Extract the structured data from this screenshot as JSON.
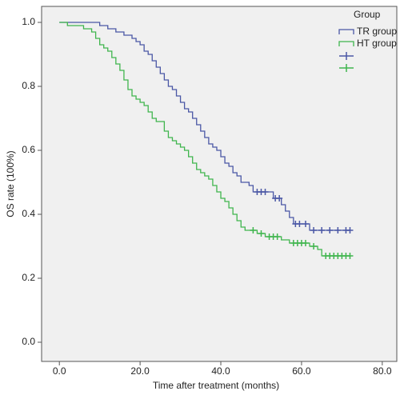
{
  "chart_data": {
    "type": "km",
    "x_label": "Time after treatment (months)",
    "y_label": "OS rate (100%)",
    "legend_title": "Group",
    "legend": "top-right",
    "xlim": [
      -4.4,
      83.6
    ],
    "ylim": [
      -0.06,
      1.05
    ],
    "xticks": [
      {
        "value": 0,
        "label": "0.0"
      },
      {
        "value": 20,
        "label": "20.0"
      },
      {
        "value": 40,
        "label": "40.0"
      },
      {
        "value": 60,
        "label": "60.0"
      },
      {
        "value": 80,
        "label": "80.0"
      }
    ],
    "yticks": [
      {
        "value": 0,
        "label": "0.0"
      },
      {
        "value": 0.2,
        "label": "0.2"
      },
      {
        "value": 0.4,
        "label": "0.4"
      },
      {
        "value": 0.6,
        "label": "0.6"
      },
      {
        "value": 0.8,
        "label": "0.8"
      },
      {
        "value": 1,
        "label": "1.0"
      }
    ],
    "series": [
      {
        "name": "TR group",
        "color": "#4a57a5",
        "x": [
          0,
          10,
          12,
          14,
          16,
          18,
          19,
          20,
          21,
          22,
          23,
          24,
          25,
          26,
          27,
          28,
          29,
          30,
          31,
          32,
          33,
          34,
          35,
          36,
          37,
          38,
          39,
          40,
          41,
          42,
          43,
          44,
          45,
          47,
          48,
          53,
          55,
          56,
          57,
          58,
          62,
          72
        ],
        "values": [
          1.0,
          0.99,
          0.98,
          0.97,
          0.96,
          0.95,
          0.94,
          0.93,
          0.91,
          0.9,
          0.88,
          0.86,
          0.84,
          0.82,
          0.8,
          0.79,
          0.77,
          0.75,
          0.73,
          0.72,
          0.7,
          0.68,
          0.66,
          0.64,
          0.62,
          0.61,
          0.6,
          0.58,
          0.56,
          0.55,
          0.53,
          0.52,
          0.5,
          0.49,
          0.47,
          0.45,
          0.43,
          0.41,
          0.39,
          0.37,
          0.35,
          0.35
        ],
        "censored": {
          "x": [
            49,
            50,
            51,
            53.5,
            54.5,
            58.5,
            59.5,
            61,
            63,
            65,
            67,
            69,
            71,
            72
          ],
          "values": [
            0.47,
            0.47,
            0.47,
            0.45,
            0.45,
            0.37,
            0.37,
            0.37,
            0.35,
            0.35,
            0.35,
            0.35,
            0.35,
            0.35
          ]
        }
      },
      {
        "name": "HT group",
        "color": "#3fb54d",
        "x": [
          0,
          2,
          6,
          8,
          9,
          10,
          11,
          12,
          13,
          14,
          15,
          16,
          17,
          18,
          19,
          20,
          21,
          22,
          23,
          24,
          26,
          27,
          28,
          29,
          30,
          31,
          32,
          33,
          34,
          35,
          36,
          37,
          38,
          39,
          40,
          41,
          42,
          43,
          44,
          45,
          46,
          49,
          51,
          55,
          57,
          62,
          64,
          65,
          72
        ],
        "values": [
          1.0,
          0.99,
          0.98,
          0.97,
          0.95,
          0.93,
          0.92,
          0.91,
          0.89,
          0.87,
          0.85,
          0.82,
          0.79,
          0.77,
          0.76,
          0.75,
          0.74,
          0.72,
          0.7,
          0.69,
          0.66,
          0.64,
          0.63,
          0.62,
          0.61,
          0.6,
          0.58,
          0.56,
          0.54,
          0.53,
          0.52,
          0.51,
          0.49,
          0.47,
          0.45,
          0.44,
          0.42,
          0.4,
          0.38,
          0.36,
          0.35,
          0.34,
          0.33,
          0.32,
          0.31,
          0.3,
          0.29,
          0.27,
          0.27
        ],
        "censored": {
          "x": [
            48,
            50,
            52,
            53,
            54,
            58,
            59,
            60,
            61,
            63,
            66,
            67,
            68,
            69,
            70,
            71,
            72
          ],
          "values": [
            0.35,
            0.34,
            0.33,
            0.33,
            0.33,
            0.31,
            0.31,
            0.31,
            0.31,
            0.3,
            0.27,
            0.27,
            0.27,
            0.27,
            0.27,
            0.27,
            0.27
          ]
        }
      }
    ]
  }
}
